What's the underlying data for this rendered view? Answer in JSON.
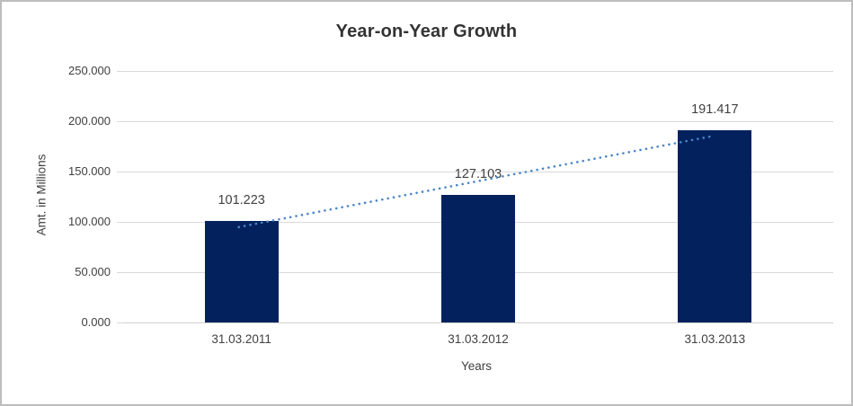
{
  "window": {
    "background": "#ffffff",
    "border_color": "#bdbdbd"
  },
  "chart_data": {
    "type": "bar",
    "title": "Year-on-Year Growth",
    "categories": [
      "31.03.2011",
      "31.03.2012",
      "31.03.2013"
    ],
    "values": [
      101.223,
      127.103,
      191.417
    ],
    "data_labels": [
      "101.223",
      "127.103",
      "191.417"
    ],
    "xlabel": "Years",
    "ylabel": "Amt. in Millions",
    "ylim": [
      0,
      250
    ],
    "ytick_step": 50,
    "ytick_labels": [
      "0.000",
      "50.000",
      "100.000",
      "150.000",
      "200.000",
      "250.000"
    ],
    "grid": true,
    "legend": "none",
    "bar_color": "#02215d",
    "gridline_color": "#d9d9d9",
    "axis_line_color": "#cfcfcf",
    "label_color": "#404040",
    "title_color": "#333333",
    "trendline": {
      "type": "linear",
      "style": "dotted",
      "color": "#4a86c8",
      "start_value": 94.8,
      "end_value": 185.0
    }
  }
}
